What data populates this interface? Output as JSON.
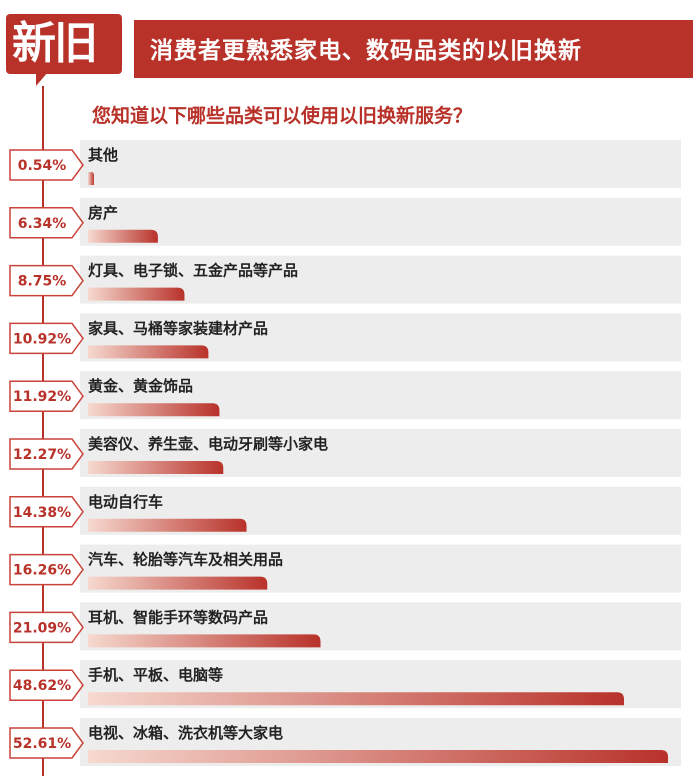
{
  "header": {
    "logo_text": "新旧",
    "title": "消费者更熟悉家电、数码品类的以旧换新"
  },
  "question": "您知道以下哪些品类可以使用以旧换新服务？",
  "colors": {
    "accent": "#b8322a",
    "bar_dark": "#b8322a",
    "bar_light": "#f6d9cf",
    "row_bg": "#ededed"
  },
  "chart_data": {
    "type": "bar",
    "orientation": "horizontal",
    "title": "消费者更熟悉家电、数码品类的以旧换新",
    "subtitle": "您知道以下哪些品类可以使用以旧换新服务？",
    "categories": [
      "其他",
      "房产",
      "灯具、电子锁、五金产品等产品",
      "家具、马桶等家装建材产品",
      "黄金、黄金饰品",
      "美容仪、养生壶、电动牙刷等小家电",
      "电动自行车",
      "汽车、轮胎等汽车及相关用品",
      "耳机、智能手环等数码产品",
      "手机、平板、电脑等",
      "电视、冰箱、洗衣机等大家电"
    ],
    "values": [
      0.54,
      6.34,
      8.75,
      10.92,
      11.92,
      12.27,
      14.38,
      16.26,
      21.09,
      48.62,
      52.61
    ],
    "value_labels": [
      "0.54%",
      "6.34%",
      "8.75%",
      "10.92%",
      "11.92%",
      "12.27%",
      "14.38%",
      "16.26%",
      "21.09%",
      "48.62%",
      "52.61%"
    ],
    "xlim": [
      0,
      52.61
    ],
    "grid": false,
    "legend": "none"
  }
}
